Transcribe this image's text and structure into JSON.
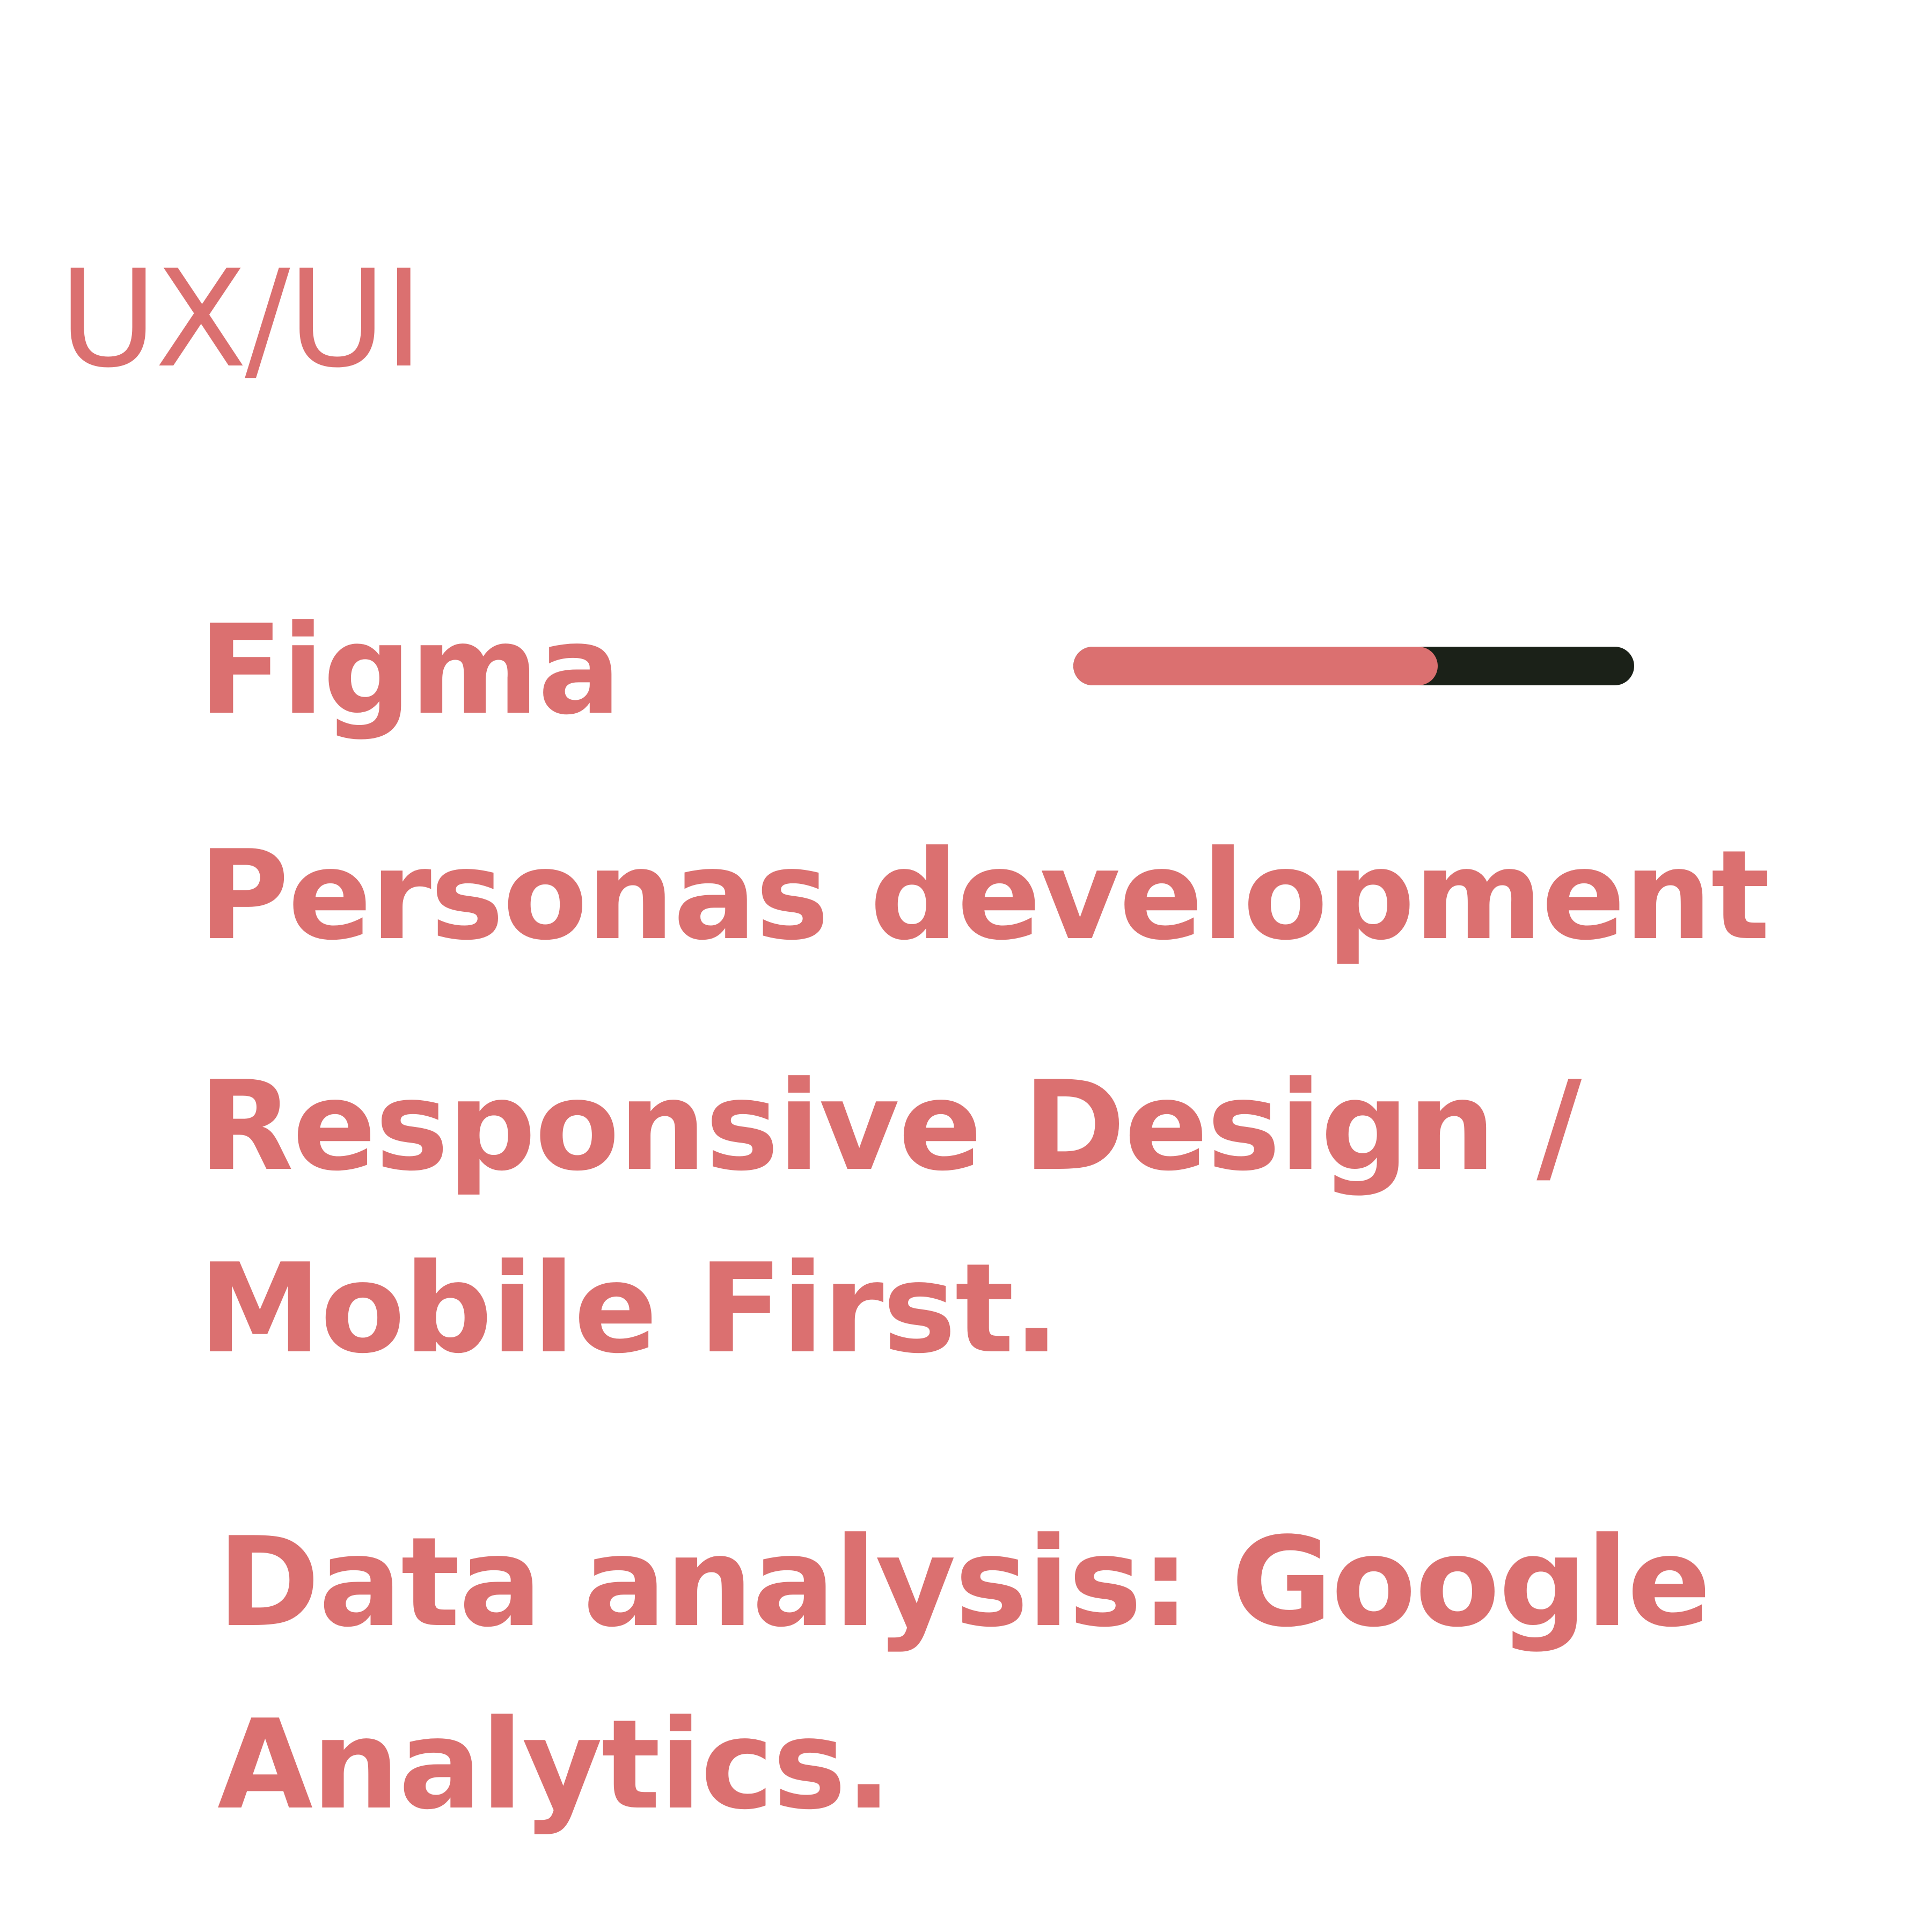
{
  "section": {
    "title": "UX/UI"
  },
  "skills": [
    {
      "label": "Figma",
      "level": 0.65
    },
    {
      "label": "Personas development"
    },
    {
      "label_lines": [
        "Responsive Design /",
        "Mobile First."
      ]
    },
    {
      "label_lines": [
        "Data analysis: Google",
        "Analytics."
      ]
    }
  ],
  "colors": {
    "accent": "#db7070",
    "track": "#1b2118",
    "background": "#ffffff"
  }
}
